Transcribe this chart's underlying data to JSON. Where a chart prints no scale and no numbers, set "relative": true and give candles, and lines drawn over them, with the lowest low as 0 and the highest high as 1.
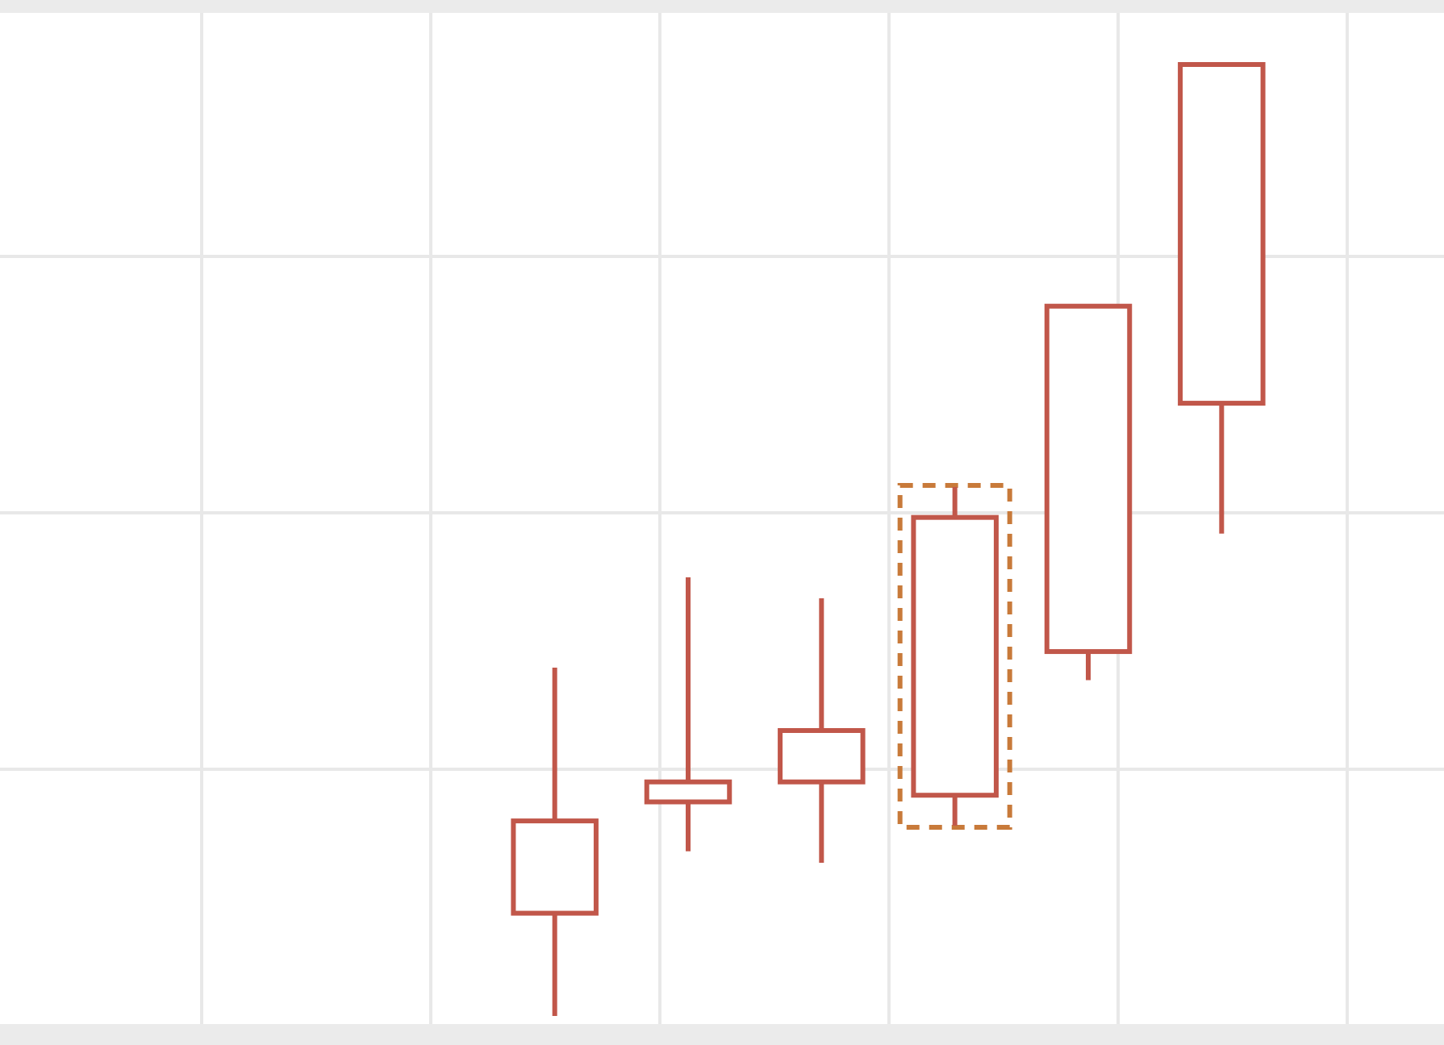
{
  "chart_data": {
    "type": "candlestick",
    "relative": true,
    "grid": true,
    "color": "#c1574a",
    "categories": [
      null,
      null,
      null,
      null,
      null,
      null
    ],
    "ohlc": [
      [
        0.108,
        0.366,
        0,
        0.205
      ],
      [
        0.225,
        0.461,
        0.173,
        0.246
      ],
      [
        0.246,
        0.439,
        0.161,
        0.3
      ],
      [
        0.232,
        0.556,
        0.2,
        0.524
      ],
      [
        0.383,
        0.746,
        0.353,
        0.746
      ],
      [
        0.644,
        1,
        0.507,
        1
      ]
    ]
  }
}
